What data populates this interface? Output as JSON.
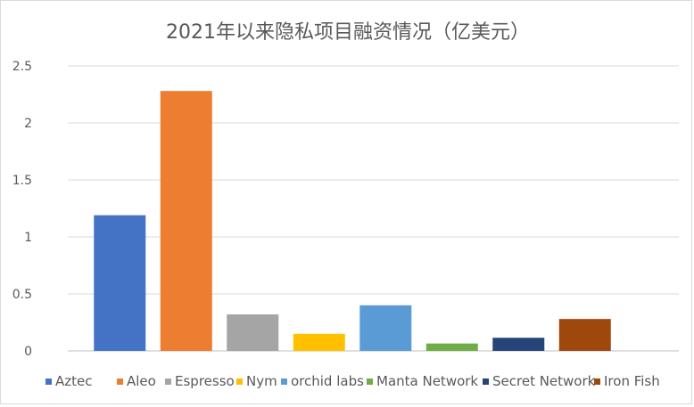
{
  "chart_data": {
    "type": "bar",
    "title": "2021年以来隐私项目融资情况（亿美元）",
    "xlabel": "",
    "ylabel": "",
    "ylim": [
      0,
      2.5
    ],
    "yticks": [
      "2.5",
      "2",
      "1.5",
      "1",
      "0.5",
      "0"
    ],
    "grid": true,
    "legend_position": "bottom",
    "series": [
      {
        "name": "Aztec",
        "value": 1.19,
        "color": "#4472C4"
      },
      {
        "name": "Aleo",
        "value": 2.28,
        "color": "#ED7D31"
      },
      {
        "name": "Espresso",
        "value": 0.32,
        "color": "#A5A5A5"
      },
      {
        "name": "Nym",
        "value": 0.15,
        "color": "#FFC000"
      },
      {
        "name": "orchid labs",
        "value": 0.4,
        "color": "#5B9BD5"
      },
      {
        "name": "Manta Network",
        "value": 0.065,
        "color": "#70AD47"
      },
      {
        "name": "Secret Network",
        "value": 0.115,
        "color": "#264478"
      },
      {
        "name": "Iron Fish",
        "value": 0.28,
        "color": "#9E480E"
      }
    ]
  }
}
